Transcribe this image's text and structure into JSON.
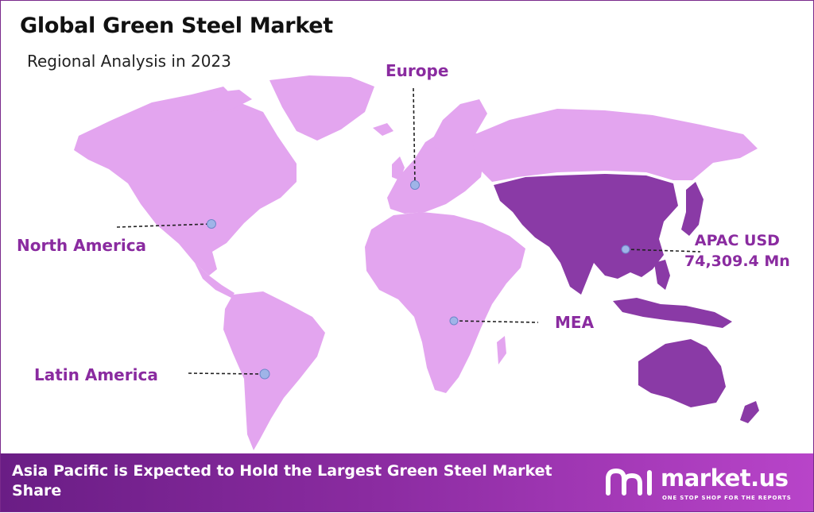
{
  "title": "Global Green Steel Market",
  "subtitle": "Regional Analysis in 2023",
  "regions": {
    "north_america": "North America",
    "europe": "Europe",
    "latin_america": "Latin America",
    "mea": "MEA",
    "apac_line1": "APAC USD",
    "apac_line2": "74,309.4 Mn"
  },
  "highlight_region": "Asia Pacific",
  "apac_value_usd_mn": 74309.4,
  "colors": {
    "land": "#e3a5ef",
    "highlight": "#8a3aa6",
    "label": "#8a2ba0",
    "marker": "#9fb4e8",
    "footer_start": "#6a1d85",
    "footer_end": "#b844c9"
  },
  "footer": {
    "text": "Asia Pacific is Expected to Hold the Largest Green Steel Market Share"
  },
  "brand": {
    "name": "market.us",
    "tagline": "ONE STOP SHOP FOR THE REPORTS",
    "logo_icon": "market-us-logo-icon"
  }
}
